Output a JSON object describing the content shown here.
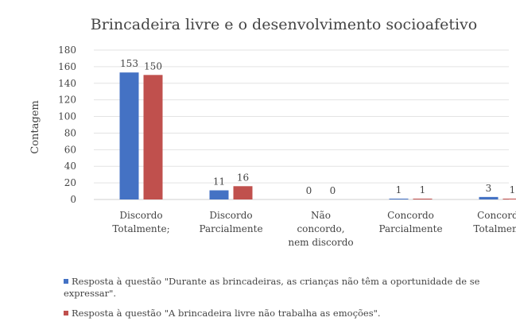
{
  "chart_data": {
    "type": "bar",
    "title": "Brincadeira livre e o desenvolvimento socioafetivo",
    "xlabel": "",
    "ylabel": "Contagem",
    "ylim": [
      0,
      180
    ],
    "yticks": [
      0,
      20,
      40,
      60,
      80,
      100,
      120,
      140,
      160,
      180
    ],
    "grid": true,
    "legend_position": "bottom",
    "categories": [
      [
        "Discordo",
        "Totalmente;"
      ],
      [
        "Discordo",
        "Parcialmente"
      ],
      [
        "Não",
        "concordo,",
        "nem discordo"
      ],
      [
        "Concordo",
        "Parcialmente"
      ],
      [
        "Concordo",
        "Totalmente"
      ]
    ],
    "series": [
      {
        "name": "Resposta à questão \"Durante as brincadeiras, as crianças não têm a oportunidade de se expressar\".",
        "color": "#4472c4",
        "values": [
          153,
          11,
          0,
          1,
          3
        ]
      },
      {
        "name": "Resposta à questão \"A brincadeira livre não trabalha as emoções\".",
        "color": "#c0504d",
        "values": [
          150,
          16,
          0,
          1,
          1
        ]
      }
    ]
  }
}
